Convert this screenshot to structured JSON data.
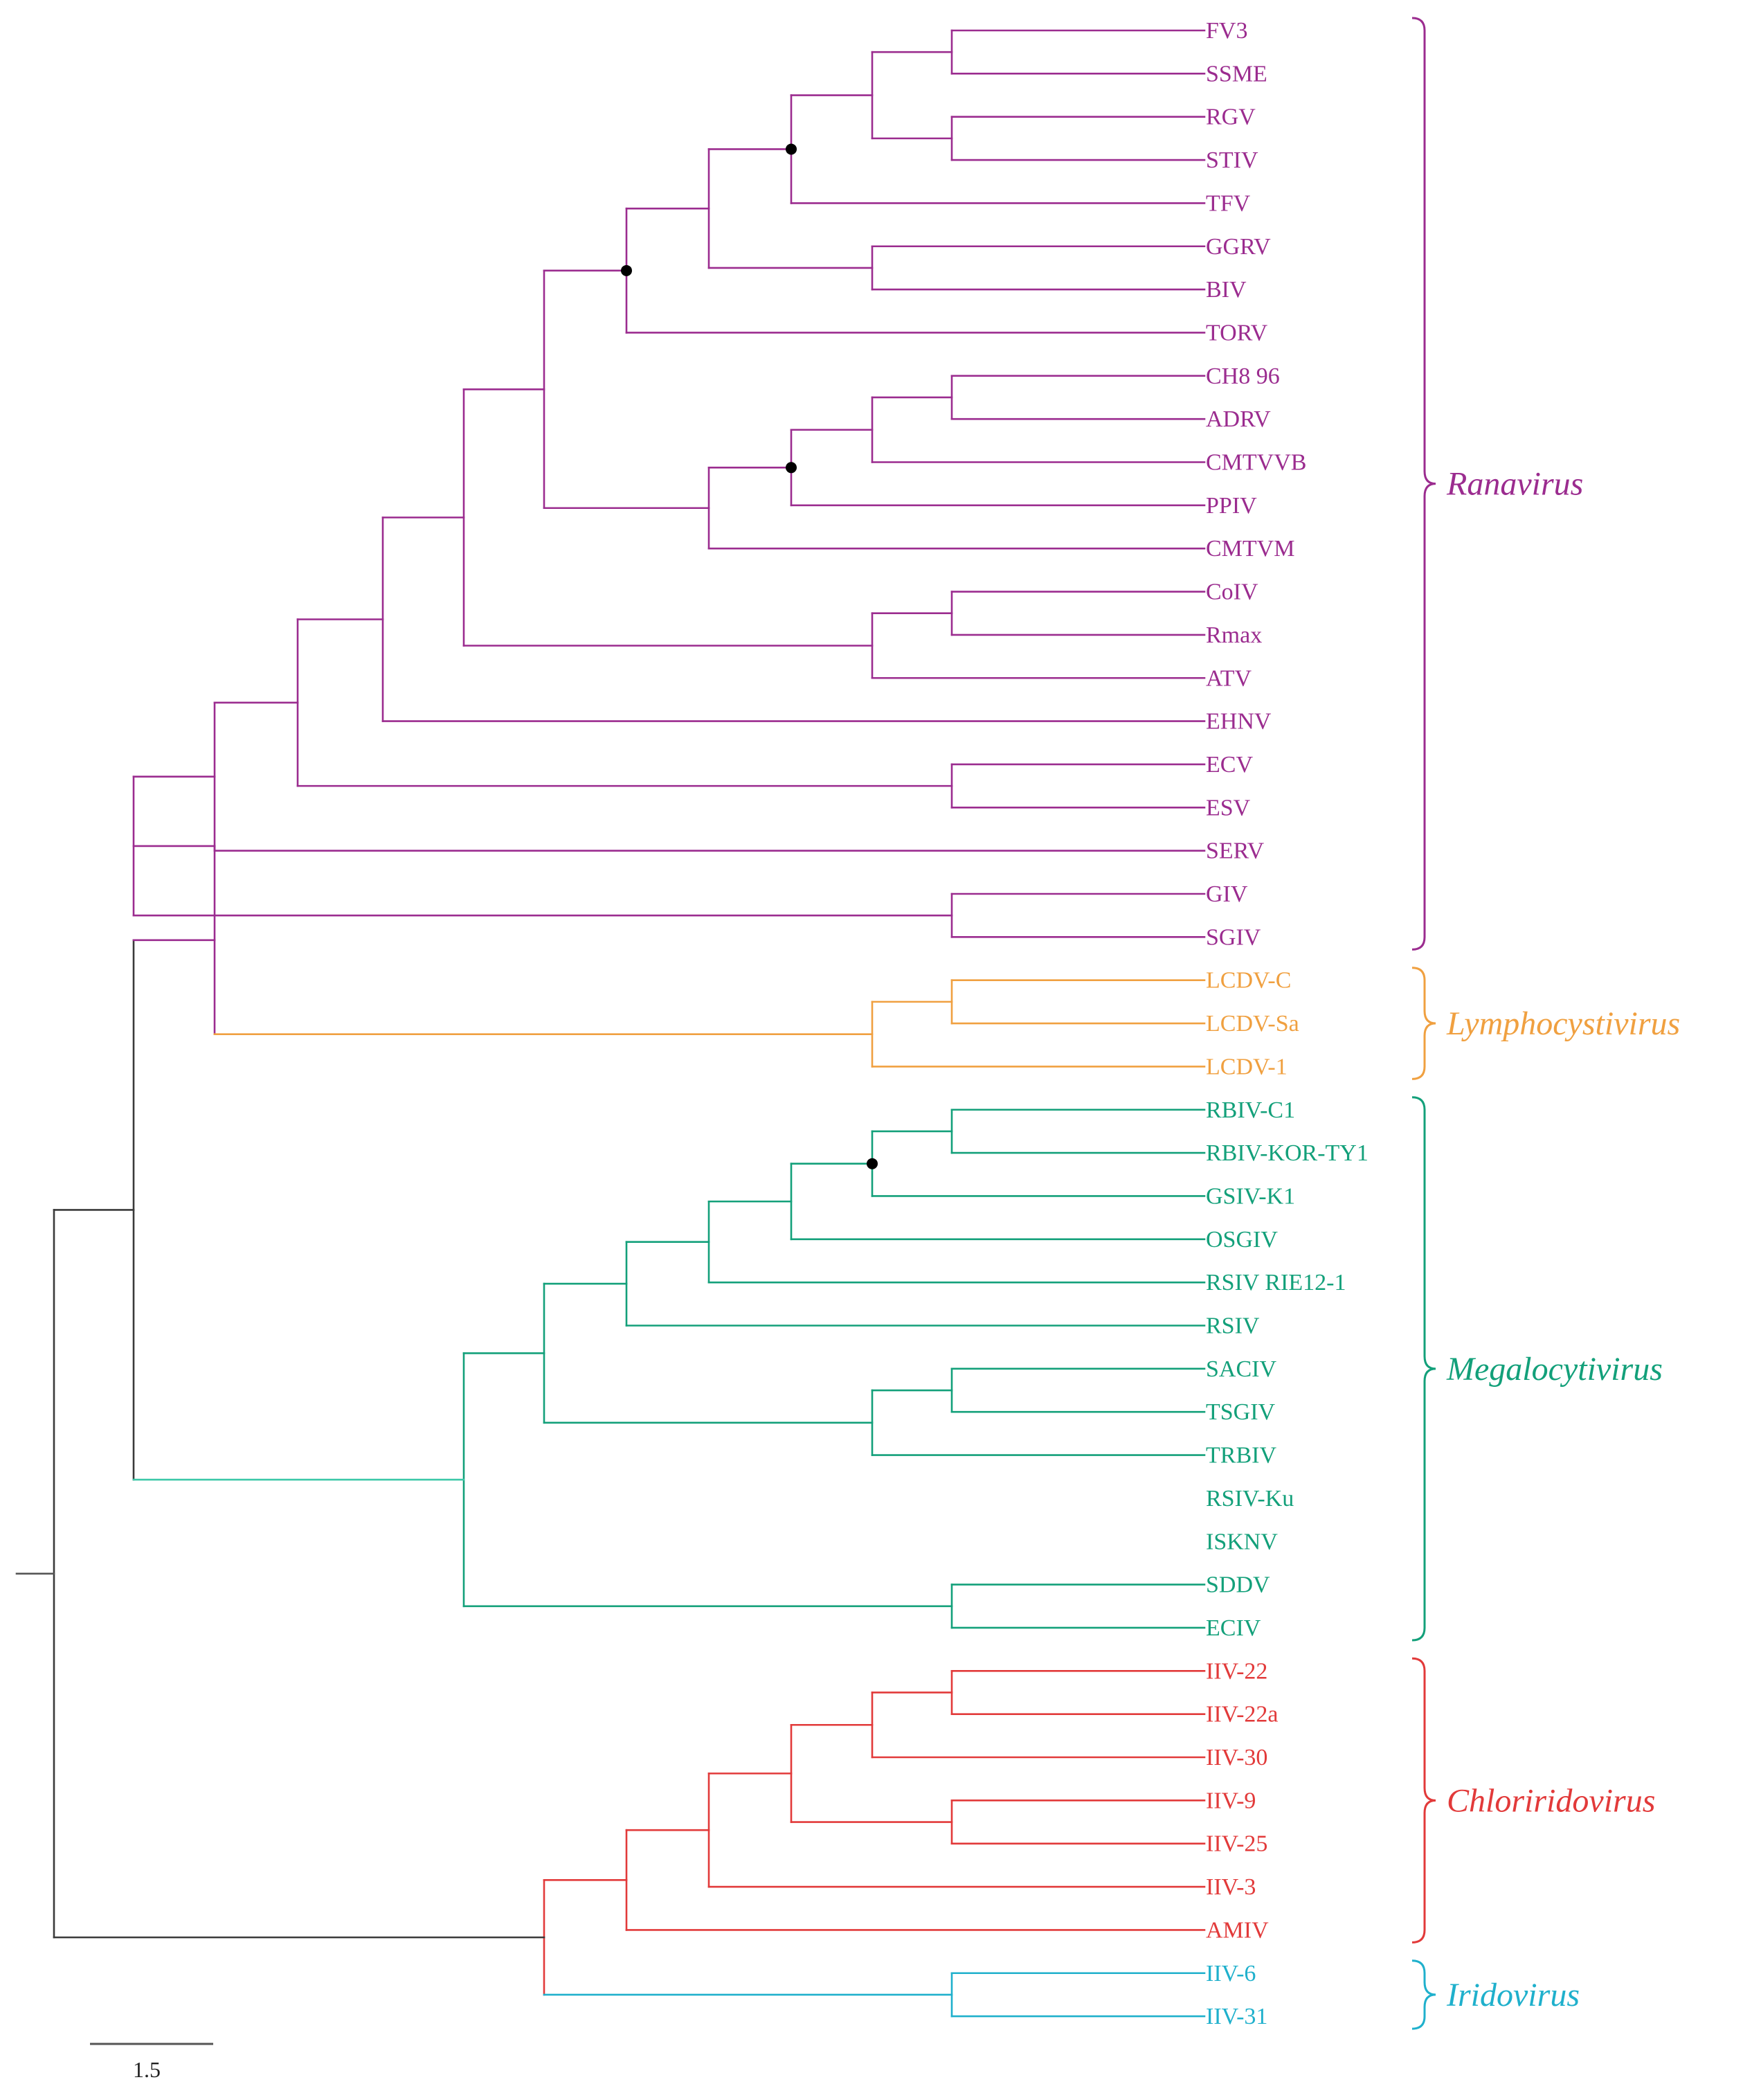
{
  "figure": "phylogenetic-tree",
  "colors": {
    "root": "#3a3a3a",
    "Ranavirus": "#9b2c8f",
    "Lymphocystivirus": "#f0a040",
    "Megalocytivirus": "#13a07a",
    "Chloriridovirus": "#e23a3a",
    "Iridovirus": "#1fb0cc",
    "mega_stem": "#3cc8a8",
    "node_dot": "#000000"
  },
  "leaves": [
    {
      "name": "FV3",
      "group": "Ranavirus"
    },
    {
      "name": "SSME",
      "group": "Ranavirus"
    },
    {
      "name": "RGV",
      "group": "Ranavirus"
    },
    {
      "name": "STIV",
      "group": "Ranavirus"
    },
    {
      "name": "TFV",
      "group": "Ranavirus"
    },
    {
      "name": "GGRV",
      "group": "Ranavirus"
    },
    {
      "name": "BIV",
      "group": "Ranavirus"
    },
    {
      "name": "TORV",
      "group": "Ranavirus"
    },
    {
      "name": "CH8 96",
      "group": "Ranavirus"
    },
    {
      "name": "ADRV",
      "group": "Ranavirus"
    },
    {
      "name": "CMTVVB",
      "group": "Ranavirus"
    },
    {
      "name": "PPIV",
      "group": "Ranavirus"
    },
    {
      "name": "CMTVM",
      "group": "Ranavirus"
    },
    {
      "name": "CoIV",
      "group": "Ranavirus"
    },
    {
      "name": "Rmax",
      "group": "Ranavirus"
    },
    {
      "name": "ATV",
      "group": "Ranavirus"
    },
    {
      "name": "EHNV",
      "group": "Ranavirus"
    },
    {
      "name": "ECV",
      "group": "Ranavirus"
    },
    {
      "name": "ESV",
      "group": "Ranavirus"
    },
    {
      "name": "SERV",
      "group": "Ranavirus"
    },
    {
      "name": "GIV",
      "group": "Ranavirus"
    },
    {
      "name": "SGIV",
      "group": "Ranavirus"
    },
    {
      "name": "LCDV-C",
      "group": "Lymphocystivirus"
    },
    {
      "name": "LCDV-Sa",
      "group": "Lymphocystivirus"
    },
    {
      "name": "LCDV-1",
      "group": "Lymphocystivirus"
    },
    {
      "name": "RBIV-C1",
      "group": "Megalocytivirus"
    },
    {
      "name": "RBIV-KOR-TY1",
      "group": "Megalocytivirus"
    },
    {
      "name": "GSIV-K1",
      "group": "Megalocytivirus"
    },
    {
      "name": "OSGIV",
      "group": "Megalocytivirus"
    },
    {
      "name": "RSIV RIE12-1",
      "group": "Megalocytivirus"
    },
    {
      "name": "RSIV",
      "group": "Megalocytivirus"
    },
    {
      "name": "SACIV",
      "group": "Megalocytivirus"
    },
    {
      "name": "TSGIV",
      "group": "Megalocytivirus"
    },
    {
      "name": "TRBIV",
      "group": "Megalocytivirus"
    },
    {
      "name": "RSIV-Ku",
      "group": "Megalocytivirus"
    },
    {
      "name": "ISKNV",
      "group": "Megalocytivirus"
    },
    {
      "name": "SDDV",
      "group": "Megalocytivirus"
    },
    {
      "name": "ECIV",
      "group": "Megalocytivirus"
    },
    {
      "name": "IIV-22",
      "group": "Chloriridovirus"
    },
    {
      "name": "IIV-22a",
      "group": "Chloriridovirus"
    },
    {
      "name": "IIV-30",
      "group": "Chloriridovirus"
    },
    {
      "name": "IIV-9",
      "group": "Chloriridovirus"
    },
    {
      "name": "IIV-25",
      "group": "Chloriridovirus"
    },
    {
      "name": "IIV-3",
      "group": "Chloriridovirus"
    },
    {
      "name": "AMIV",
      "group": "Chloriridovirus"
    },
    {
      "name": "IIV-6",
      "group": "Iridovirus"
    },
    {
      "name": "IIV-31",
      "group": "Iridovirus"
    }
  ],
  "genera": [
    {
      "label": "Ranavirus",
      "first": 0,
      "last": 21
    },
    {
      "label": "Lymphocystivirus",
      "first": 22,
      "last": 24
    },
    {
      "label": "Megalocytivirus",
      "first": 25,
      "last": 37
    },
    {
      "label": "Chloriridovirus",
      "first": 38,
      "last": 44
    },
    {
      "label": "Iridovirus",
      "first": 45,
      "last": 46
    }
  ],
  "scale_bar": {
    "label": "1.5"
  }
}
